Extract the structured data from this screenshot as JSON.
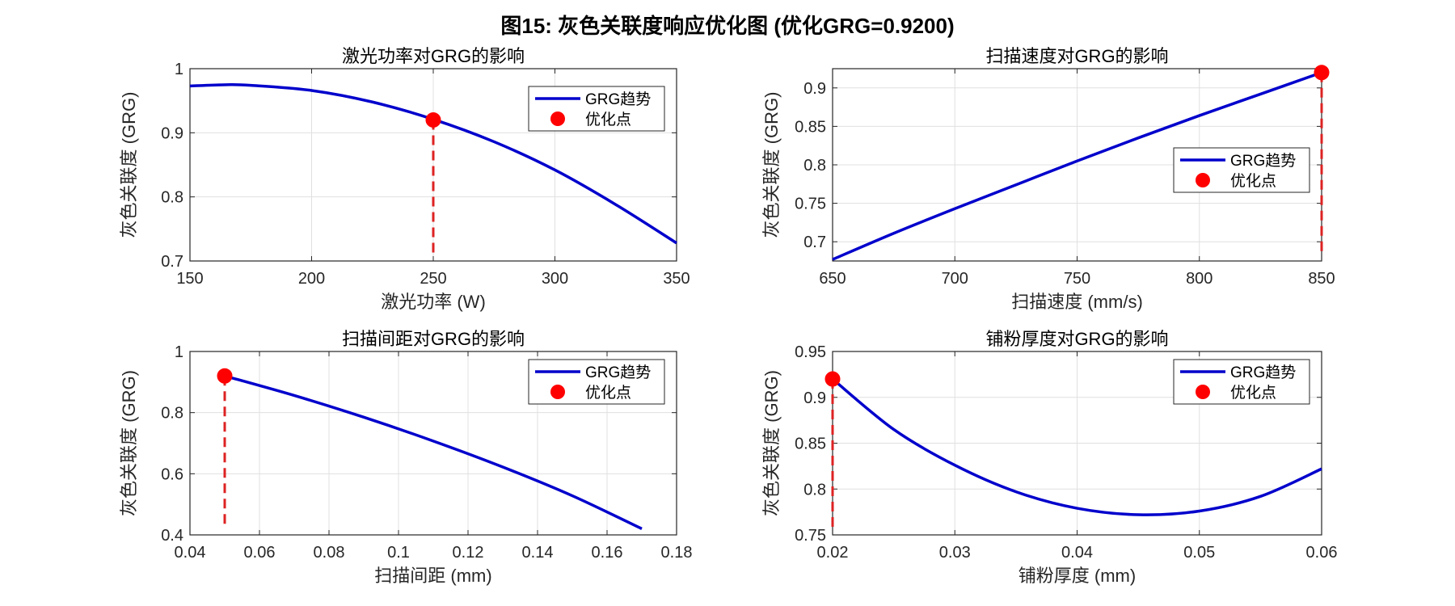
{
  "figure_title": "图15: 灰色关联度响应优化图 (优化GRG=0.9200)",
  "colors": {
    "curve": "#0000CC",
    "point": "#FF0000",
    "guide": "#DD2222",
    "grid": "#E0E0E0",
    "axis": "#262626"
  },
  "chart_data": [
    {
      "type": "line",
      "title": "激光功率对GRG的影响",
      "xlabel": "激光功率 (W)",
      "ylabel": "灰色关联度 (GRG)",
      "xlim": [
        150,
        350
      ],
      "ylim": [
        0.7,
        1.0
      ],
      "xticks": [
        150,
        200,
        250,
        300,
        350
      ],
      "yticks": [
        0.7,
        0.8,
        0.9,
        1.0
      ],
      "xtick_labels": [
        "150",
        "200",
        "250",
        "300",
        "350"
      ],
      "ytick_labels": [
        "0.7",
        "0.8",
        "0.9",
        "1"
      ],
      "legend": {
        "position": "top-right",
        "entries": [
          "GRG趋势",
          "优化点"
        ]
      },
      "series": [
        {
          "name": "GRG趋势",
          "x": [
            150,
            165,
            175,
            200,
            225,
            250,
            275,
            300,
            325,
            350
          ],
          "y": [
            0.973,
            0.975,
            0.974,
            0.966,
            0.948,
            0.921,
            0.886,
            0.842,
            0.788,
            0.728
          ]
        }
      ],
      "optimum": {
        "name": "优化点",
        "x": 250,
        "y": 0.92
      }
    },
    {
      "type": "line",
      "title": "扫描速度对GRG的影响",
      "xlabel": "扫描速度 (mm/s)",
      "ylabel": "灰色关联度 (GRG)",
      "xlim": [
        650,
        850
      ],
      "ylim": [
        0.675,
        0.925
      ],
      "xticks": [
        650,
        700,
        750,
        800,
        850
      ],
      "yticks": [
        0.7,
        0.75,
        0.8,
        0.85,
        0.9
      ],
      "xtick_labels": [
        "650",
        "700",
        "750",
        "800",
        "850"
      ],
      "ytick_labels": [
        "0.7",
        "0.75",
        "0.8",
        "0.85",
        "0.9"
      ],
      "legend": {
        "position": "right",
        "entries": [
          "GRG趋势",
          "优化点"
        ]
      },
      "series": [
        {
          "name": "GRG趋势",
          "x": [
            650,
            675,
            700,
            725,
            750,
            775,
            800,
            825,
            850
          ],
          "y": [
            0.677,
            0.711,
            0.743,
            0.774,
            0.805,
            0.835,
            0.864,
            0.892,
            0.92
          ]
        }
      ],
      "optimum": {
        "name": "优化点",
        "x": 850,
        "y": 0.92
      }
    },
    {
      "type": "line",
      "title": "扫描间距对GRG的影响",
      "xlabel": "扫描间距 (mm)",
      "ylabel": "灰色关联度 (GRG)",
      "xlim": [
        0.04,
        0.18
      ],
      "ylim": [
        0.4,
        1.0
      ],
      "xticks": [
        0.04,
        0.06,
        0.08,
        0.1,
        0.12,
        0.14,
        0.16,
        0.18
      ],
      "yticks": [
        0.4,
        0.6,
        0.8,
        1.0
      ],
      "xtick_labels": [
        "0.04",
        "0.06",
        "0.08",
        "0.1",
        "0.12",
        "0.14",
        "0.16",
        "0.18"
      ],
      "ytick_labels": [
        "0.4",
        "0.6",
        "0.8",
        "1"
      ],
      "legend": {
        "position": "top-right",
        "entries": [
          "GRG趋势",
          "优化点"
        ]
      },
      "series": [
        {
          "name": "GRG趋势",
          "x": [
            0.05,
            0.07,
            0.09,
            0.11,
            0.13,
            0.15,
            0.17
          ],
          "y": [
            0.92,
            0.856,
            0.785,
            0.707,
            0.622,
            0.528,
            0.42
          ]
        }
      ],
      "optimum": {
        "name": "优化点",
        "x": 0.05,
        "y": 0.92
      }
    },
    {
      "type": "line",
      "title": "铺粉厚度对GRG的影响",
      "xlabel": "铺粉厚度 (mm)",
      "ylabel": "灰色关联度 (GRG)",
      "xlim": [
        0.02,
        0.06
      ],
      "ylim": [
        0.75,
        0.95
      ],
      "xticks": [
        0.02,
        0.03,
        0.04,
        0.05,
        0.06
      ],
      "yticks": [
        0.75,
        0.8,
        0.85,
        0.9,
        0.95
      ],
      "xtick_labels": [
        "0.02",
        "0.03",
        "0.04",
        "0.05",
        "0.06"
      ],
      "ytick_labels": [
        "0.75",
        "0.8",
        "0.85",
        "0.9",
        "0.95"
      ],
      "legend": {
        "position": "top-right",
        "entries": [
          "GRG趋势",
          "优化点"
        ]
      },
      "series": [
        {
          "name": "GRG趋势",
          "x": [
            0.02,
            0.025,
            0.03,
            0.035,
            0.04,
            0.045,
            0.05,
            0.055,
            0.06
          ],
          "y": [
            0.92,
            0.865,
            0.826,
            0.797,
            0.779,
            0.772,
            0.776,
            0.792,
            0.822
          ]
        }
      ],
      "optimum": {
        "name": "优化点",
        "x": 0.02,
        "y": 0.92
      }
    }
  ]
}
